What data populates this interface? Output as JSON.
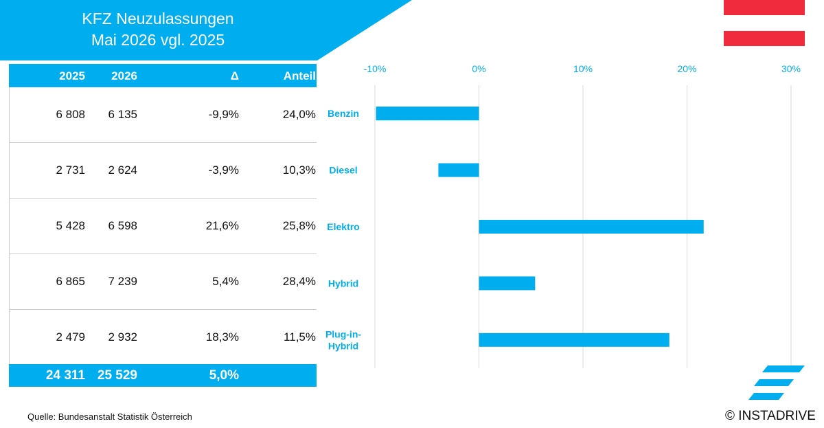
{
  "header": {
    "title_line1": "KFZ Neuzulassungen",
    "title_line2": "Mai 2026 vgl. 2025"
  },
  "colors": {
    "accent": "#00aeef",
    "flag_red": "#ef2b3d",
    "grid": "#d9d9d9"
  },
  "table": {
    "headers": [
      "2025",
      "2026",
      "Δ",
      "Anteil"
    ],
    "rows": [
      [
        "6 808",
        "6 135",
        "-9,9%",
        "24,0%"
      ],
      [
        "2 731",
        "2 624",
        "-3,9%",
        "10,3%"
      ],
      [
        "5 428",
        "6 598",
        "21,6%",
        "25,8%"
      ],
      [
        "6 865",
        "7 239",
        "5,4%",
        "28,4%"
      ],
      [
        "2 479",
        "2 932",
        "18,3%",
        "11,5%"
      ]
    ],
    "total": [
      "24 311",
      "25 529",
      "5,0%",
      ""
    ]
  },
  "chart_data": {
    "type": "bar",
    "orientation": "horizontal",
    "categories": [
      "Benzin",
      "Diesel",
      "Elektro",
      "Hybrid",
      "Plug-in-Hybrid"
    ],
    "category_label_lines": [
      [
        "Benzin"
      ],
      [
        "Diesel"
      ],
      [
        "Elektro"
      ],
      [
        "Hybrid"
      ],
      [
        "Plug-in-",
        "Hybrid"
      ]
    ],
    "values": [
      -9.9,
      -3.9,
      21.6,
      5.4,
      18.3
    ],
    "xlim": [
      -10,
      30
    ],
    "xticks": [
      -10,
      0,
      10,
      20,
      30
    ],
    "xtick_labels": [
      "-10%",
      "0%",
      "10%",
      "20%",
      "30%"
    ],
    "axis_position": "top",
    "grid": true,
    "bar_color": "#00aeef"
  },
  "footer": {
    "source": "Quelle: Bundesanstalt Statistik Österreich",
    "copyright": "© INSTADRIVE"
  }
}
